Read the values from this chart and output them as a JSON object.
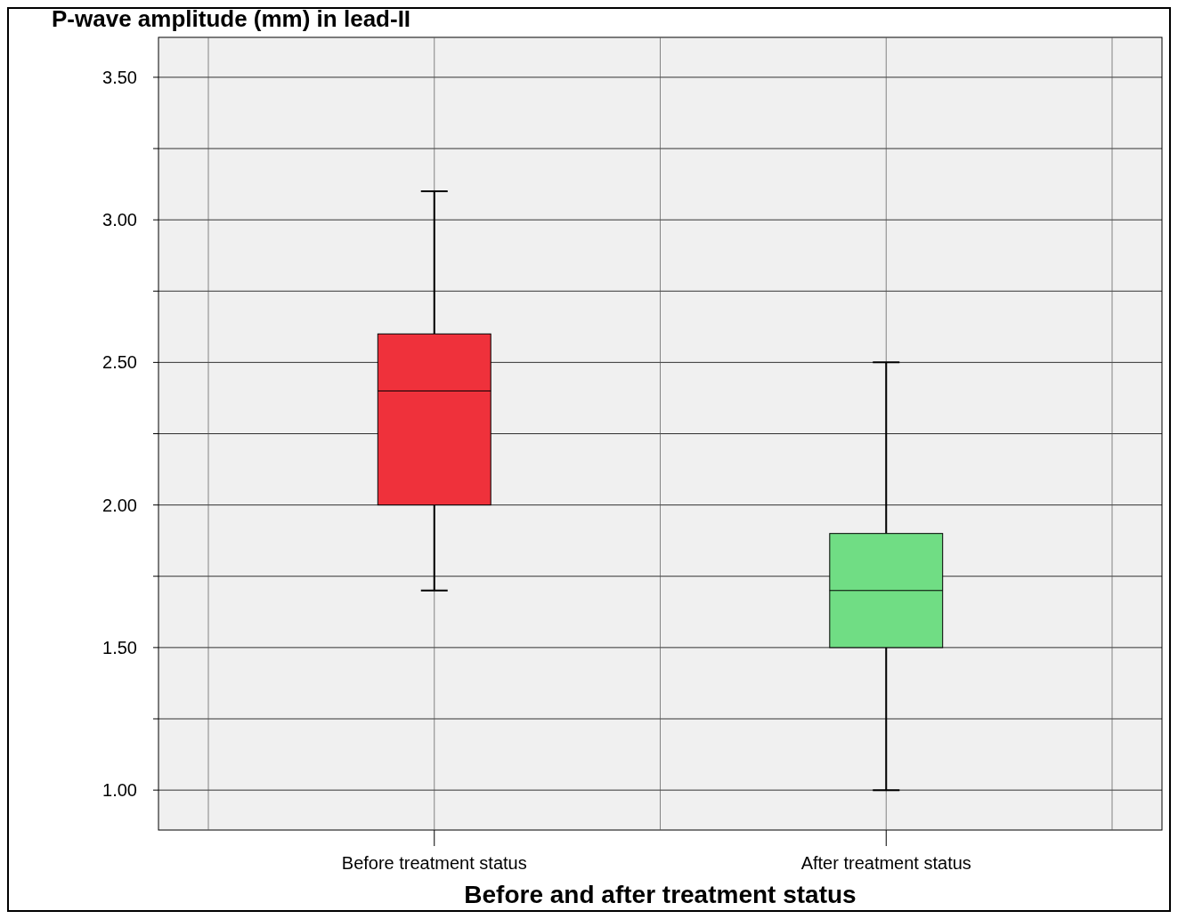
{
  "chart_data": {
    "type": "box",
    "xlabel": "Before and after treatment status",
    "ylabel": "P-wave amplitude (mm) in lead-II",
    "categories": [
      "Before treatment status",
      "After treatment status"
    ],
    "boxes": [
      {
        "low": 1.7,
        "q1": 2.0,
        "median": 2.4,
        "q3": 2.6,
        "high": 3.1
      },
      {
        "low": 1.0,
        "q1": 1.5,
        "median": 1.7,
        "q3": 1.9,
        "high": 2.5
      }
    ],
    "colors": [
      "#ef313b",
      "#70dd84"
    ],
    "ylim": [
      0.86,
      3.64
    ],
    "yticks": [
      {
        "value": 1.0,
        "label": "1.00"
      },
      {
        "value": 1.25,
        "label": null
      },
      {
        "value": 1.5,
        "label": "1.50"
      },
      {
        "value": 1.75,
        "label": null
      },
      {
        "value": 2.0,
        "label": "2.00"
      },
      {
        "value": 2.25,
        "label": null
      },
      {
        "value": 2.5,
        "label": "2.50"
      },
      {
        "value": 2.75,
        "label": null
      },
      {
        "value": 3.0,
        "label": "3.00"
      },
      {
        "value": 3.25,
        "label": null
      },
      {
        "value": 3.5,
        "label": "3.50"
      }
    ],
    "grid": true
  }
}
